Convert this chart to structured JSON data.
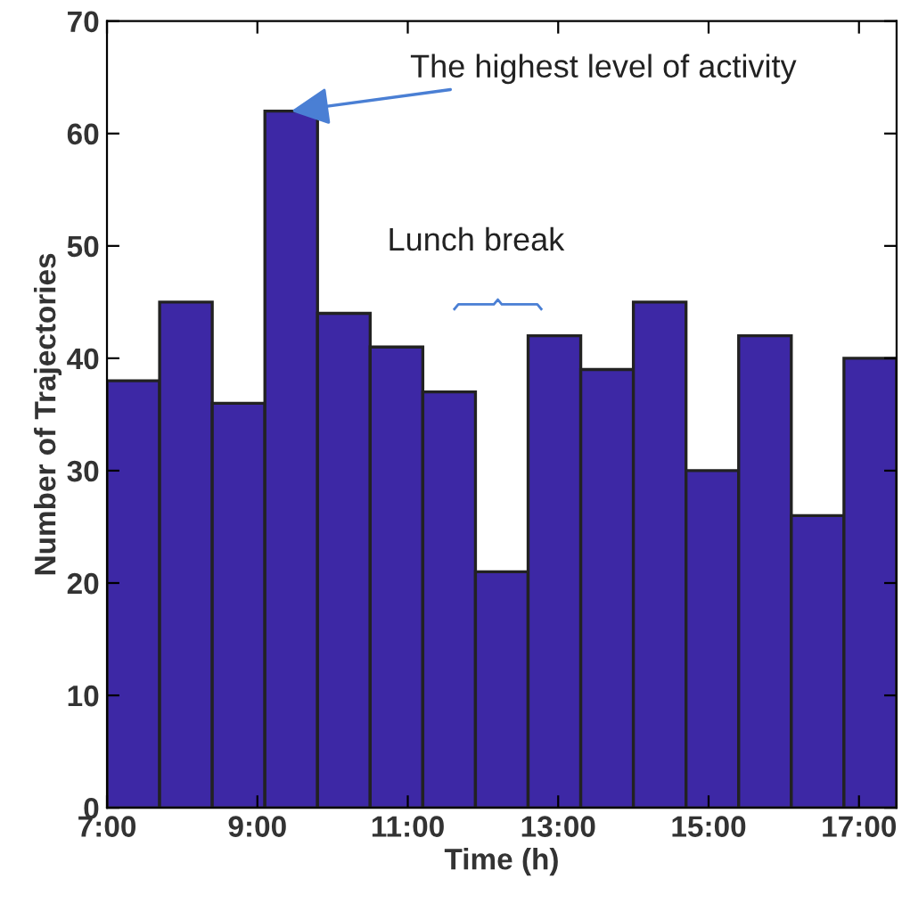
{
  "chart_data": {
    "type": "histogram",
    "xlabel": "Time (h)",
    "ylabel": "Number of Trajectories",
    "bins": [
      7,
      7.7,
      8.4,
      9.1,
      9.8,
      10.5,
      11.2,
      11.9,
      12.6,
      13.3,
      14,
      14.7,
      15.4,
      16.1,
      16.8,
      17.5
    ],
    "values": [
      38,
      45,
      36,
      62,
      44,
      41,
      37,
      21,
      42,
      39,
      45,
      30,
      42,
      26,
      40
    ],
    "color": "#3d28a5",
    "xlim": [
      7,
      17.5
    ],
    "xticks": [
      {
        "value": 7,
        "label": "7:00"
      },
      {
        "value": 9,
        "label": "9:00"
      },
      {
        "value": 11,
        "label": "11:00"
      },
      {
        "value": 13,
        "label": "13:00"
      },
      {
        "value": 15,
        "label": "15:00"
      },
      {
        "value": 17,
        "label": "17:00"
      }
    ],
    "ylim": [
      0,
      70
    ],
    "yticks": [
      0,
      10,
      20,
      30,
      40,
      50,
      60,
      70
    ],
    "annotations": [
      {
        "text": "The highest level of activity",
        "x": 9.45,
        "y": 62
      },
      "Lunch break"
    ],
    "grid": false,
    "legend": false
  }
}
